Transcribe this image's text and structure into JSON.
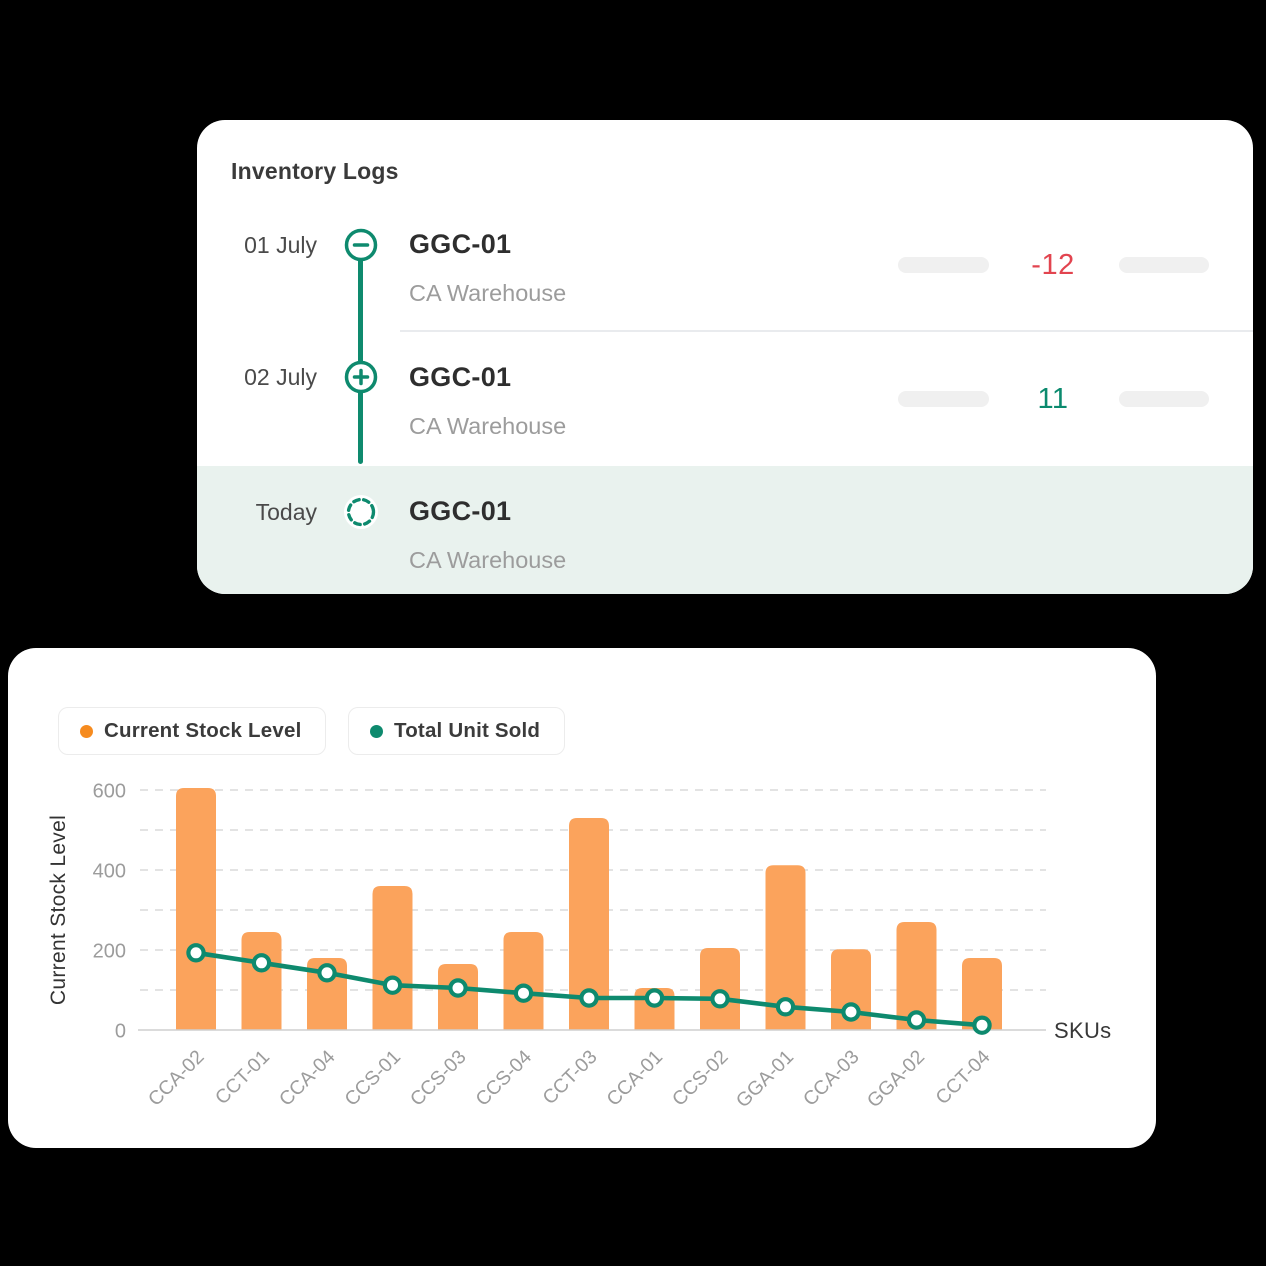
{
  "colors": {
    "background": "#000000",
    "card": "#ffffff",
    "accent_teal": "#0e8a6e",
    "bar_orange": "#fba35c",
    "legend_orange": "#f68b1f",
    "negative_red": "#e2444f",
    "positive_teal": "#0b8a6e",
    "highlight_row": "#e9f2ee",
    "pill_gray": "#f0f0f0"
  },
  "inventory_card": {
    "title": "Inventory Logs",
    "rows": [
      {
        "date": "01 July",
        "icon": "minus-circle-icon",
        "sku": "GGC-01",
        "location": "CA Warehouse",
        "change": "-12",
        "change_sign": "negative",
        "highlighted": false
      },
      {
        "date": "02 July",
        "icon": "plus-circle-icon",
        "sku": "GGC-01",
        "location": "CA Warehouse",
        "change": "11",
        "change_sign": "positive",
        "highlighted": false
      },
      {
        "date": "Today",
        "icon": "dashed-circle-icon",
        "sku": "GGC-01",
        "location": "CA Warehouse",
        "change": "",
        "change_sign": "none",
        "highlighted": true
      }
    ]
  },
  "chart_card": {
    "legend": [
      {
        "label": "Current Stock Level",
        "color": "#f68b1f"
      },
      {
        "label": "Total Unit Sold",
        "color": "#0e8a6e"
      }
    ]
  },
  "chart_data": {
    "type": "bar",
    "subtype": "bar+line combo",
    "categories": [
      "CCA-02",
      "CCT-01",
      "CCA-04",
      "CCS-01",
      "CCS-03",
      "CCS-04",
      "CCT-03",
      "CCA-01",
      "CCS-02",
      "GGA-01",
      "CCA-03",
      "GGA-02",
      "CCT-04"
    ],
    "series": [
      {
        "name": "Current Stock Level",
        "type": "bar",
        "color": "#fba35c",
        "values": [
          605,
          245,
          180,
          360,
          165,
          245,
          530,
          105,
          205,
          412,
          202,
          270,
          180
        ]
      },
      {
        "name": "Total Unit Sold",
        "type": "line",
        "color": "#0e8a6e",
        "marker": "circle-open",
        "values": [
          193,
          168,
          143,
          112,
          105,
          92,
          80,
          80,
          78,
          58,
          45,
          25,
          12
        ]
      }
    ],
    "title": "",
    "xlabel": "SKUs",
    "ylabel": "Current Stock Level",
    "ylim": [
      0,
      600
    ],
    "yticks": [
      0,
      200,
      400,
      600
    ],
    "gridlines": [
      100,
      200,
      300,
      400,
      500,
      600
    ],
    "grid": "dashed-horizontal",
    "legend_position": "top-left"
  }
}
